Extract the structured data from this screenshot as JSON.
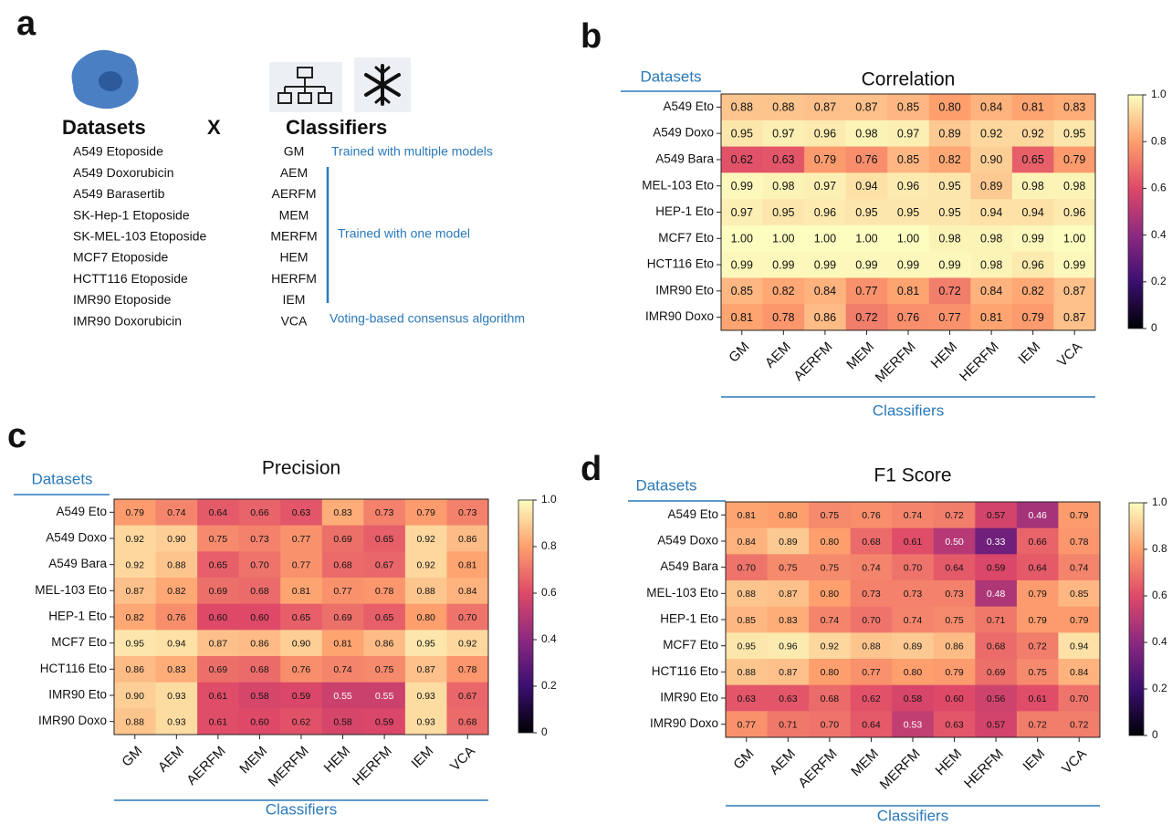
{
  "panel_labels": [
    "a",
    "b",
    "c",
    "d"
  ],
  "panel_a": {
    "datasets_title": "Datasets",
    "cross": "X",
    "classifiers_title": "Classifiers",
    "datasets": [
      "A549 Etoposide",
      "A549 Doxorubicin",
      "A549 Barasertib",
      "SK-Hep-1 Etoposide",
      "SK-MEL-103 Etoposide",
      "MCF7 Etoposide",
      "HCTT116 Etoposide",
      "IMR90 Etoposide",
      "IMR90 Doxorubicin"
    ],
    "classifiers": [
      "GM",
      "AEM",
      "AERFM",
      "MEM",
      "MERFM",
      "HEM",
      "HERFM",
      "IEM",
      "VCA"
    ],
    "notes": [
      "Trained with multiple models",
      "Trained with one model",
      "Voting-based consensus algorithm"
    ]
  },
  "chart_data": [
    {
      "type": "heatmap",
      "title": "Correlation",
      "x_label": "Classifiers",
      "y_label": "Datasets",
      "x_categories": [
        "GM",
        "AEM",
        "AERFM",
        "MEM",
        "MERFM",
        "HEM",
        "HERFM",
        "IEM",
        "VCA"
      ],
      "y_categories": [
        "A549 Eto",
        "A549 Doxo",
        "A549 Bara",
        "MEL-103 Eto",
        "HEP-1 Eto",
        "MCF7 Eto",
        "HCT116 Eto",
        "IMR90 Eto",
        "IMR90 Doxo"
      ],
      "values": [
        [
          0.88,
          0.88,
          0.87,
          0.87,
          0.85,
          0.8,
          0.84,
          0.81,
          0.83
        ],
        [
          0.95,
          0.97,
          0.96,
          0.98,
          0.97,
          0.89,
          0.92,
          0.92,
          0.95
        ],
        [
          0.62,
          0.63,
          0.79,
          0.76,
          0.85,
          0.82,
          0.9,
          0.65,
          0.79
        ],
        [
          0.99,
          0.98,
          0.97,
          0.94,
          0.96,
          0.95,
          0.89,
          0.98,
          0.98
        ],
        [
          0.97,
          0.95,
          0.96,
          0.95,
          0.95,
          0.95,
          0.94,
          0.94,
          0.96
        ],
        [
          1,
          1,
          1,
          1,
          1,
          0.98,
          0.98,
          0.99,
          1
        ],
        [
          0.99,
          0.99,
          0.99,
          0.99,
          0.99,
          0.99,
          0.98,
          0.96,
          0.99
        ],
        [
          0.85,
          0.82,
          0.84,
          0.77,
          0.81,
          0.72,
          0.84,
          0.82,
          0.87
        ],
        [
          0.81,
          0.78,
          0.86,
          0.72,
          0.76,
          0.77,
          0.81,
          0.79,
          0.87
        ]
      ],
      "value_labels": [
        [
          "0.88",
          "0.88",
          "0.87",
          "0.87",
          "0.85",
          "0.80",
          "0.84",
          "0.81",
          "0.83"
        ],
        [
          "0.95",
          "0.97",
          "0.96",
          "0.98",
          "0.97",
          "0.89",
          "0.92",
          "0.92",
          "0.95"
        ],
        [
          "0.62",
          "0.63",
          "0.79",
          "0.76",
          "0.85",
          "0.82",
          "0.90",
          "0.65",
          "0.79"
        ],
        [
          "0.99",
          "0.98",
          "0.97",
          "0.94",
          "0.96",
          "0.95",
          "0.89",
          "0.98",
          "0.98"
        ],
        [
          "0.97",
          "0.95",
          "0.96",
          "0.95",
          "0.95",
          "0.95",
          "0.94",
          "0.94",
          "0.96"
        ],
        [
          "1.00",
          "1.00",
          "1.00",
          "1.00",
          "1.00",
          "0.98",
          "0.98",
          "0.99",
          "1.00"
        ],
        [
          "0.99",
          "0.99",
          "0.99",
          "0.99",
          "0.99",
          "0.99",
          "0.98",
          "0.96",
          "0.99"
        ],
        [
          "0.85",
          "0.82",
          "0.84",
          "0.77",
          "0.81",
          "0.72",
          "0.84",
          "0.82",
          "0.87"
        ],
        [
          "0.81",
          "0.78",
          "0.86",
          "0.72",
          "0.76",
          "0.77",
          "0.81",
          "0.79",
          "0.87"
        ]
      ],
      "zlim": [
        0,
        1
      ],
      "zticks": [
        0,
        0.2,
        0.4,
        0.6,
        0.8,
        {
          "value": 1,
          "label": "1.0"
        }
      ],
      "colormap": [
        "#000004",
        "#3b0f70",
        "#8c2981",
        "#de4968",
        "#fe9f6d",
        "#fcfdbf"
      ]
    },
    {
      "type": "heatmap",
      "title": "Precision",
      "x_label": "Classifiers",
      "y_label": "Datasets",
      "x_categories": [
        "GM",
        "AEM",
        "AERFM",
        "MEM",
        "MERFM",
        "HEM",
        "HERFM",
        "IEM",
        "VCA"
      ],
      "y_categories": [
        "A549 Eto",
        "A549 Doxo",
        "A549 Bara",
        "MEL-103 Eto",
        "HEP-1 Eto",
        "MCF7 Eto",
        "HCT116 Eto",
        "IMR90 Eto",
        "IMR90 Doxo"
      ],
      "values": [
        [
          0.79,
          0.74,
          0.64,
          0.66,
          0.63,
          0.83,
          0.73,
          0.79,
          0.73
        ],
        [
          0.92,
          0.9,
          0.75,
          0.73,
          0.77,
          0.69,
          0.65,
          0.92,
          0.86
        ],
        [
          0.92,
          0.88,
          0.65,
          0.7,
          0.77,
          0.68,
          0.67,
          0.92,
          0.81
        ],
        [
          0.87,
          0.82,
          0.69,
          0.68,
          0.81,
          0.77,
          0.78,
          0.88,
          0.84
        ],
        [
          0.82,
          0.76,
          0.6,
          0.6,
          0.65,
          0.69,
          0.65,
          0.8,
          0.7
        ],
        [
          0.95,
          0.94,
          0.87,
          0.86,
          0.9,
          0.81,
          0.86,
          0.95,
          0.92
        ],
        [
          0.86,
          0.83,
          0.69,
          0.68,
          0.76,
          0.74,
          0.75,
          0.87,
          0.78
        ],
        [
          0.9,
          0.93,
          0.61,
          0.58,
          0.59,
          0.55,
          0.55,
          0.93,
          0.67
        ],
        [
          0.88,
          0.93,
          0.61,
          0.6,
          0.62,
          0.58,
          0.59,
          0.93,
          0.68
        ]
      ],
      "value_labels": [
        [
          "0.79",
          "0.74",
          "0.64",
          "0.66",
          "0.63",
          "0.83",
          "0.73",
          "0.79",
          "0.73"
        ],
        [
          "0.92",
          "0.90",
          "0.75",
          "0.73",
          "0.77",
          "0.69",
          "0.65",
          "0.92",
          "0.86"
        ],
        [
          "0.92",
          "0.88",
          "0.65",
          "0.70",
          "0.77",
          "0.68",
          "0.67",
          "0.92",
          "0.81"
        ],
        [
          "0.87",
          "0.82",
          "0.69",
          "0.68",
          "0.81",
          "0.77",
          "0.78",
          "0.88",
          "0.84"
        ],
        [
          "0.82",
          "0.76",
          "0.60",
          "0.60",
          "0.65",
          "0.69",
          "0.65",
          "0.80",
          "0.70"
        ],
        [
          "0.95",
          "0.94",
          "0.87",
          "0.86",
          "0.90",
          "0.81",
          "0.86",
          "0.95",
          "0.92"
        ],
        [
          "0.86",
          "0.83",
          "0.69",
          "0.68",
          "0.76",
          "0.74",
          "0.75",
          "0.87",
          "0.78"
        ],
        [
          "0.90",
          "0.93",
          "0.61",
          "0.58",
          "0.59",
          "0.55",
          "0.55",
          "0.93",
          "0.67"
        ],
        [
          "0.88",
          "0.93",
          "0.61",
          "0.60",
          "0.62",
          "0.58",
          "0.59",
          "0.93",
          "0.68"
        ]
      ],
      "zlim": [
        0,
        1
      ],
      "zticks": [
        0,
        0.2,
        0.4,
        0.6,
        0.8,
        {
          "value": 1,
          "label": "1.0"
        }
      ],
      "colormap": [
        "#000004",
        "#3b0f70",
        "#8c2981",
        "#de4968",
        "#fe9f6d",
        "#fcfdbf"
      ]
    },
    {
      "type": "heatmap",
      "title": "F1 Score",
      "x_label": "Classifiers",
      "y_label": "Datasets",
      "x_categories": [
        "GM",
        "AEM",
        "AERFM",
        "MEM",
        "MERFM",
        "HEM",
        "HERFM",
        "IEM",
        "VCA"
      ],
      "y_categories": [
        "A549 Eto",
        "A549 Doxo",
        "A549 Bara",
        "MEL-103 Eto",
        "HEP-1 Eto",
        "MCF7 Eto",
        "HCT116 Eto",
        "IMR90 Eto",
        "IMR90 Doxo"
      ],
      "values": [
        [
          0.81,
          0.8,
          0.75,
          0.76,
          0.74,
          0.72,
          0.57,
          0.46,
          0.79
        ],
        [
          0.84,
          0.89,
          0.8,
          0.68,
          0.61,
          0.5,
          0.33,
          0.66,
          0.78
        ],
        [
          0.7,
          0.75,
          0.75,
          0.74,
          0.7,
          0.64,
          0.59,
          0.64,
          0.74
        ],
        [
          0.88,
          0.87,
          0.8,
          0.73,
          0.73,
          0.73,
          0.48,
          0.79,
          0.85
        ],
        [
          0.85,
          0.83,
          0.74,
          0.7,
          0.74,
          0.75,
          0.71,
          0.79,
          0.79
        ],
        [
          0.95,
          0.96,
          0.92,
          0.88,
          0.89,
          0.86,
          0.68,
          0.72,
          0.94
        ],
        [
          0.88,
          0.87,
          0.8,
          0.77,
          0.8,
          0.79,
          0.69,
          0.75,
          0.84
        ],
        [
          0.63,
          0.63,
          0.68,
          0.62,
          0.58,
          0.6,
          0.56,
          0.61,
          0.7
        ],
        [
          0.77,
          0.71,
          0.7,
          0.64,
          0.53,
          0.63,
          0.57,
          0.72,
          0.72
        ]
      ],
      "value_labels": [
        [
          "0.81",
          "0.80",
          "0.75",
          "0.76",
          "0.74",
          "0.72",
          "0.57",
          "0.46",
          "0.79"
        ],
        [
          "0.84",
          "0.89",
          "0.80",
          "0.68",
          "0.61",
          "0.50",
          "0.33",
          "0.66",
          "0.78"
        ],
        [
          "0.70",
          "0.75",
          "0.75",
          "0.74",
          "0.70",
          "0.64",
          "0.59",
          "0.64",
          "0.74"
        ],
        [
          "0.88",
          "0.87",
          "0.80",
          "0.73",
          "0.73",
          "0.73",
          "0.48",
          "0.79",
          "0.85"
        ],
        [
          "0.85",
          "0.83",
          "0.74",
          "0.70",
          "0.74",
          "0.75",
          "0.71",
          "0.79",
          "0.79"
        ],
        [
          "0.95",
          "0.96",
          "0.92",
          "0.88",
          "0.89",
          "0.86",
          "0.68",
          "0.72",
          "0.94"
        ],
        [
          "0.88",
          "0.87",
          "0.80",
          "0.77",
          "0.80",
          "0.79",
          "0.69",
          "0.75",
          "0.84"
        ],
        [
          "0.63",
          "0.63",
          "0.68",
          "0.62",
          "0.58",
          "0.60",
          "0.56",
          "0.61",
          "0.70"
        ],
        [
          "0.77",
          "0.71",
          "0.70",
          "0.64",
          "0.53",
          "0.63",
          "0.57",
          "0.72",
          "0.72"
        ]
      ],
      "zlim": [
        0,
        1
      ],
      "zticks": [
        0,
        0.2,
        0.4,
        0.6,
        0.8,
        {
          "value": 1,
          "label": "1.0"
        }
      ],
      "colormap": [
        "#000004",
        "#3b0f70",
        "#8c2981",
        "#de4968",
        "#fe9f6d",
        "#fcfdbf"
      ]
    }
  ]
}
